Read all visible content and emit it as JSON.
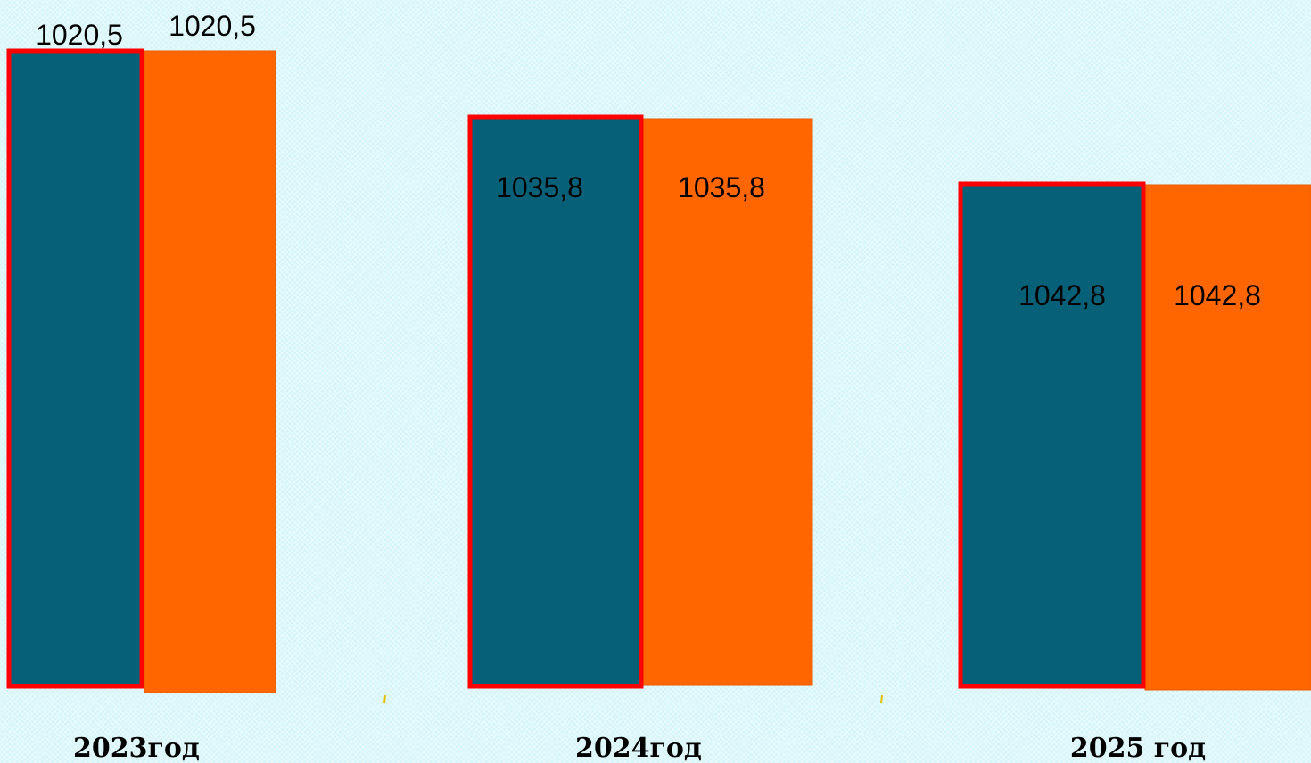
{
  "chart_data": {
    "type": "bar",
    "categories": [
      "2023год",
      "2024год",
      "2025 год"
    ],
    "series": [
      {
        "values": [
          1020.5,
          1035.8,
          1042.8
        ],
        "value_labels": [
          "1020,5",
          "1035,8",
          "1042,8"
        ]
      },
      {
        "values": [
          1020.5,
          1035.8,
          1042.8
        ],
        "value_labels": [
          "1020,5",
          "1035,8",
          "1042,8"
        ]
      }
    ],
    "colors": [
      "#066178",
      "#ff6600"
    ],
    "outline_color": "#ff0000",
    "grid": false,
    "legend": "none"
  }
}
